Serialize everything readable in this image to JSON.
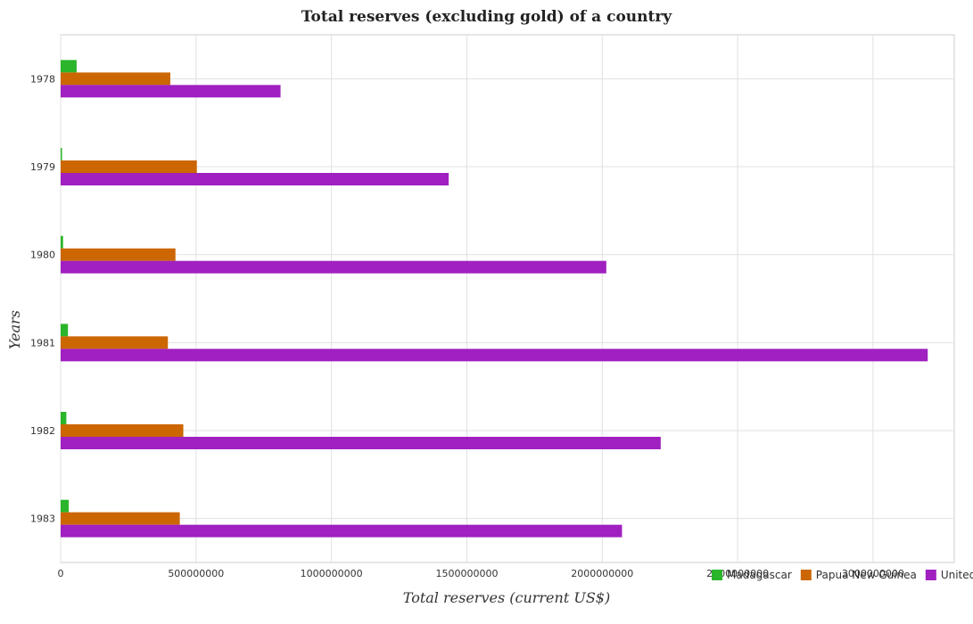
{
  "title": "Total reserves (excluding gold) of a country",
  "chart_data": {
    "type": "bar",
    "orientation": "horizontal",
    "title": "Total reserves (excluding gold) of a country",
    "xlabel": "Total reserves (current US$)",
    "ylabel": "Years",
    "categories": [
      "1978",
      "1979",
      "1980",
      "1981",
      "1982",
      "1983"
    ],
    "xlim": [
      0,
      3300000000
    ],
    "xticks": [
      0,
      500000000,
      1000000000,
      1500000000,
      2000000000,
      2500000000,
      3000000000
    ],
    "xtick_labels": [
      "0",
      "500000000",
      "1000000000",
      "1500000000",
      "2000000000",
      "2500000000",
      "3000000000"
    ],
    "grid": true,
    "legend_position": "bottom-right",
    "series": [
      {
        "name": "Madagascar",
        "color": "#2ab52a",
        "values": [
          59000000,
          5000000,
          9000000,
          27000000,
          21000000,
          30000000
        ]
      },
      {
        "name": "Papua New Guinea",
        "color": "#cc6600",
        "values": [
          405000000,
          503000000,
          424000000,
          396000000,
          453000000,
          440000000
        ]
      },
      {
        "name": "United Arab Emirates",
        "color": "#a020c0",
        "values": [
          812000000,
          1433000000,
          2015000000,
          3202000000,
          2216000000,
          2073000000
        ]
      }
    ]
  }
}
